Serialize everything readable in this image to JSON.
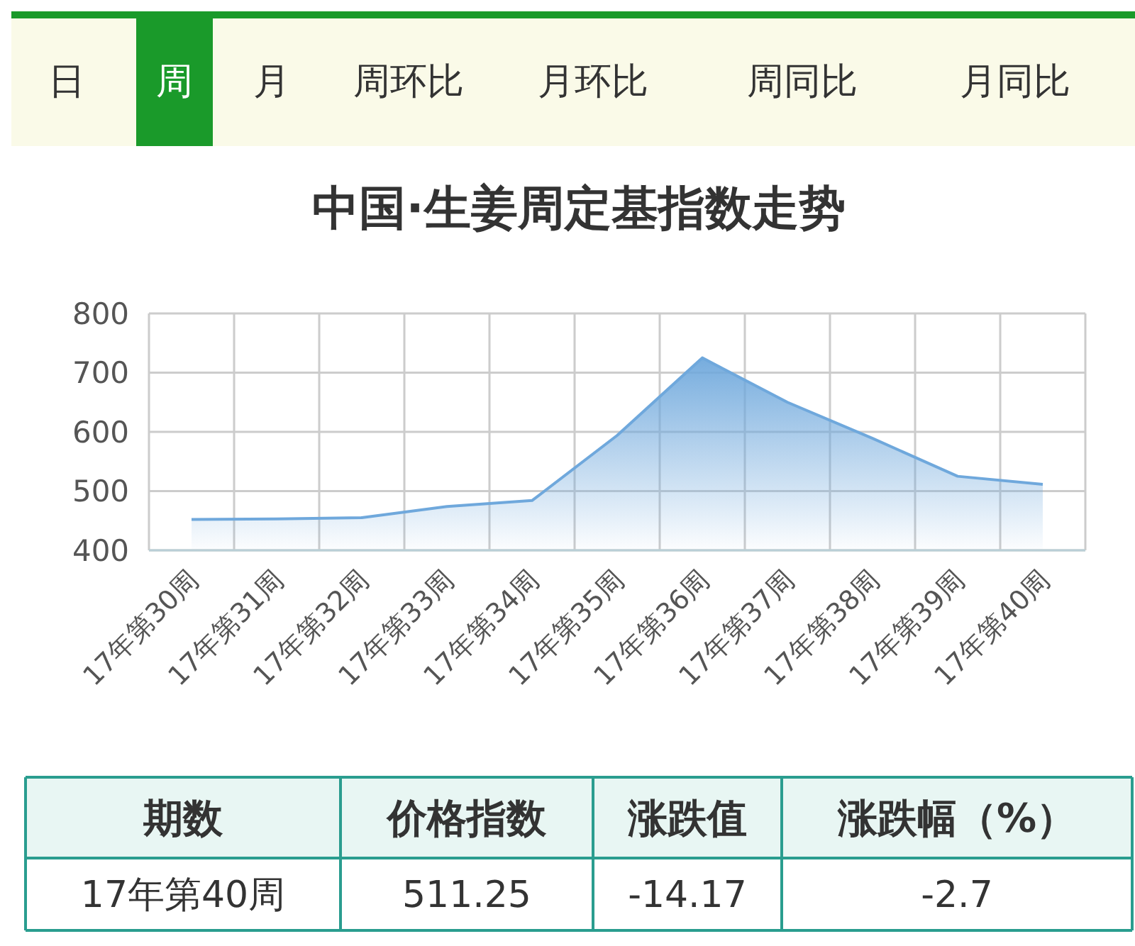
{
  "chart_data": [
    {
      "type": "other",
      "annotations": [
        "日",
        "周",
        "月",
        "周环比",
        "月环比",
        "周同比",
        "月同比"
      ]
    },
    {
      "type": "area",
      "title": "中国·生姜周定基指数走势",
      "categories": [
        "17年第30周",
        "17年第31周",
        "17年第32周",
        "17年第33周",
        "17年第34周",
        "17年第35周",
        "17年第36周",
        "17年第37周",
        "17年第38周",
        "17年第39周",
        "17年第40周"
      ],
      "series": [
        {
          "color": "#6fa8dc",
          "values": [
            452,
            453,
            455,
            474,
            484,
            594,
            725,
            650,
            589,
            525,
            511.25
          ]
        }
      ],
      "ylim": [
        400,
        800
      ],
      "yticks": [
        400,
        500,
        600,
        700,
        800
      ],
      "grid": true
    },
    {
      "type": "other",
      "annotations": [
        "期数",
        "价格指数",
        "涨跌值",
        "涨跌幅（%）",
        "17年第40周",
        "511.25",
        "-14.17",
        "-2.7"
      ]
    }
  ]
}
